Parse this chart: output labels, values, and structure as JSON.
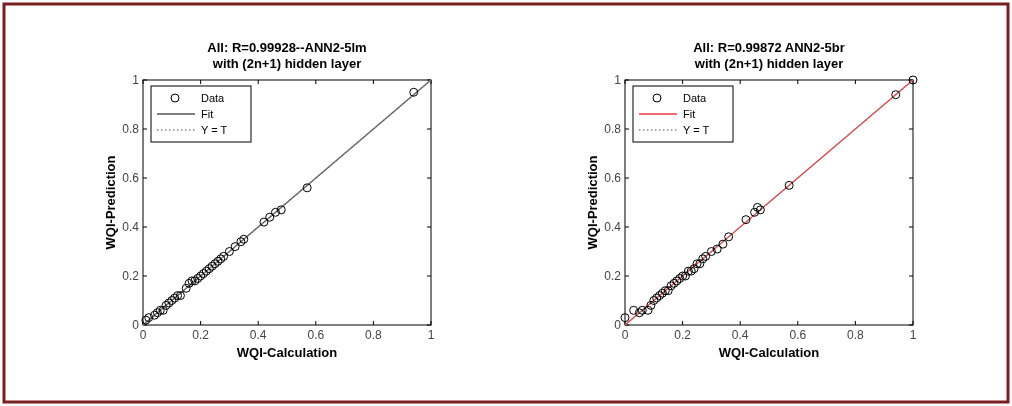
{
  "chart_data": [
    {
      "type": "scatter",
      "title": "All: R=0.99928--ANN2-5lm\nwith (2n+1) hidden layer",
      "xlabel": "WQI-Calculation",
      "ylabel": "WQI-Prediction",
      "xlim": [
        0,
        1
      ],
      "ylim": [
        0,
        1
      ],
      "xticks": [
        0,
        0.2,
        0.4,
        0.6,
        0.8,
        1
      ],
      "yticks": [
        0,
        0.2,
        0.4,
        0.6,
        0.8,
        1
      ],
      "legend": "top left",
      "series": [
        {
          "name": "Data",
          "marker": "circle",
          "color": "#000000",
          "x": [
            0.01,
            0.02,
            0.04,
            0.05,
            0.06,
            0.07,
            0.08,
            0.09,
            0.1,
            0.11,
            0.12,
            0.13,
            0.15,
            0.16,
            0.17,
            0.18,
            0.19,
            0.2,
            0.21,
            0.22,
            0.23,
            0.24,
            0.25,
            0.26,
            0.27,
            0.28,
            0.3,
            0.32,
            0.34,
            0.35,
            0.42,
            0.44,
            0.46,
            0.48,
            0.57,
            0.94
          ],
          "values": [
            0.02,
            0.03,
            0.04,
            0.05,
            0.06,
            0.06,
            0.08,
            0.09,
            0.1,
            0.11,
            0.12,
            0.12,
            0.15,
            0.17,
            0.18,
            0.18,
            0.19,
            0.2,
            0.21,
            0.22,
            0.23,
            0.24,
            0.25,
            0.26,
            0.27,
            0.28,
            0.3,
            0.32,
            0.34,
            0.35,
            0.42,
            0.44,
            0.46,
            0.47,
            0.56,
            0.95
          ]
        },
        {
          "name": "Fit",
          "type": "line",
          "line_style": "solid",
          "color": "#555555",
          "x": [
            0,
            1
          ],
          "values": [
            0,
            1
          ]
        },
        {
          "name": "Y = T",
          "type": "line",
          "line_style": "dotted",
          "color": "#888888",
          "x": [
            0,
            1
          ],
          "values": [
            0,
            1
          ]
        }
      ]
    },
    {
      "type": "scatter",
      "title": "All: R=0.99872 ANN2-5br\nwith (2n+1) hidden layer",
      "xlabel": "WQI-Calculation",
      "ylabel": "WQI-Prediction",
      "xlim": [
        0,
        1
      ],
      "ylim": [
        0,
        1
      ],
      "xticks": [
        0,
        0.2,
        0.4,
        0.6,
        0.8,
        1
      ],
      "yticks": [
        0,
        0.2,
        0.4,
        0.6,
        0.8,
        1
      ],
      "legend": "top left",
      "series": [
        {
          "name": "Data",
          "marker": "circle",
          "color": "#000000",
          "x": [
            0,
            0.03,
            0.05,
            0.06,
            0.08,
            0.09,
            0.1,
            0.11,
            0.12,
            0.13,
            0.14,
            0.15,
            0.16,
            0.17,
            0.18,
            0.19,
            0.2,
            0.21,
            0.22,
            0.23,
            0.24,
            0.25,
            0.26,
            0.27,
            0.28,
            0.3,
            0.32,
            0.34,
            0.36,
            0.42,
            0.45,
            0.46,
            0.47,
            0.57,
            0.94,
            1
          ],
          "values": [
            0.03,
            0.06,
            0.05,
            0.06,
            0.06,
            0.08,
            0.1,
            0.11,
            0.12,
            0.13,
            0.14,
            0.14,
            0.16,
            0.17,
            0.18,
            0.19,
            0.2,
            0.2,
            0.22,
            0.22,
            0.23,
            0.25,
            0.25,
            0.27,
            0.28,
            0.3,
            0.31,
            0.33,
            0.36,
            0.43,
            0.46,
            0.48,
            0.47,
            0.57,
            0.94,
            1
          ]
        },
        {
          "name": "Fit",
          "type": "line",
          "line_style": "solid",
          "color": "#e8393c",
          "x": [
            0,
            1
          ],
          "values": [
            0,
            1
          ]
        },
        {
          "name": "Y = T",
          "type": "line",
          "line_style": "dotted",
          "color": "#888888",
          "x": [
            0,
            1
          ],
          "values": [
            0,
            1
          ]
        }
      ]
    }
  ]
}
